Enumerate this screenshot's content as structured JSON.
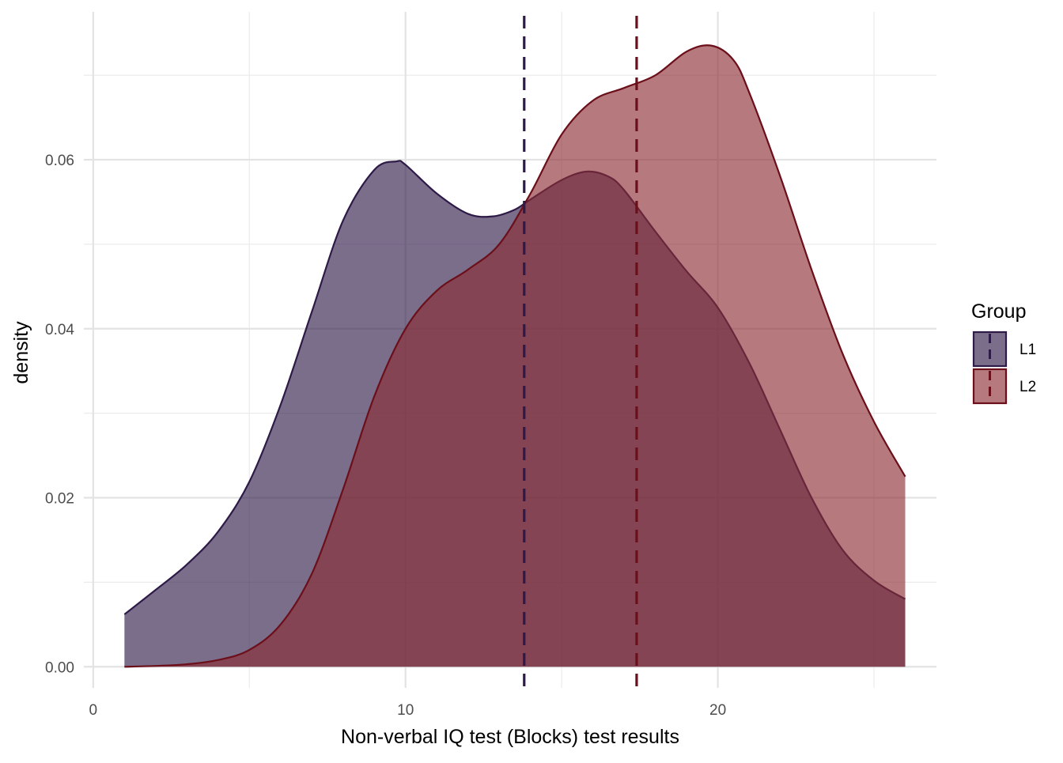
{
  "chart_data": {
    "type": "area",
    "xlabel": "Non-verbal IQ test (Blocks) test results",
    "ylabel": "density",
    "xlim": [
      -0.3,
      27
    ],
    "ylim": [
      -0.0025,
      0.0775
    ],
    "x_ticks": [
      0,
      10,
      20
    ],
    "x_tick_labels": [
      "0",
      "10",
      "20"
    ],
    "x_minor_ticks": [
      5,
      15,
      25
    ],
    "y_ticks": [
      0.0,
      0.02,
      0.04,
      0.06
    ],
    "y_tick_labels": [
      "0.00",
      "0.02",
      "0.04",
      "0.06"
    ],
    "y_minor_ticks": [
      0.01,
      0.03,
      0.05,
      0.07
    ],
    "grid": true,
    "legend": {
      "title": "Group",
      "position": "right",
      "entries": [
        "L1",
        "L2"
      ]
    },
    "series": [
      {
        "name": "L1",
        "fill": "#2e1a47",
        "line": "#2e1a47",
        "mean": 13.8,
        "x": [
          1,
          2,
          3,
          4,
          5,
          6,
          7,
          8,
          9,
          9.7,
          10,
          11,
          12,
          12.8,
          13.5,
          14,
          15,
          15.8,
          16.5,
          17,
          18,
          19,
          20,
          21,
          22,
          23,
          24,
          25,
          26
        ],
        "y": [
          0.0062,
          0.0091,
          0.0121,
          0.016,
          0.0219,
          0.031,
          0.042,
          0.0528,
          0.0588,
          0.0598,
          0.0594,
          0.056,
          0.0536,
          0.0533,
          0.0541,
          0.0553,
          0.0576,
          0.0586,
          0.058,
          0.0564,
          0.0515,
          0.0468,
          0.0425,
          0.036,
          0.028,
          0.02,
          0.0138,
          0.0102,
          0.008
        ]
      },
      {
        "name": "L2",
        "fill": "#8b2c33",
        "line": "#6b0f1a",
        "mean": 17.4,
        "x": [
          1,
          2,
          3,
          4,
          5,
          6,
          7,
          8,
          9,
          10,
          11,
          12,
          13,
          14,
          15,
          16,
          17,
          18,
          19,
          19.8,
          20.5,
          21,
          22,
          23,
          24,
          25,
          26
        ],
        "y": [
          0.0,
          0.0001,
          0.0003,
          0.0008,
          0.002,
          0.005,
          0.011,
          0.021,
          0.032,
          0.04,
          0.0445,
          0.047,
          0.05,
          0.056,
          0.063,
          0.067,
          0.0685,
          0.07,
          0.0728,
          0.0735,
          0.0718,
          0.068,
          0.058,
          0.047,
          0.037,
          0.029,
          0.0225
        ]
      }
    ]
  }
}
